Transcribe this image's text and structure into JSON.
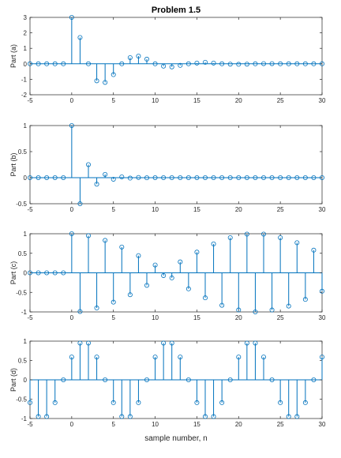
{
  "figure": {
    "title": "Problem 1.5",
    "xlabel": "sample number, n",
    "stem_color": "#0072BD",
    "axis_color": "#262626"
  },
  "chart_data": [
    {
      "type": "stem",
      "ylabel": "Part (a)",
      "xlim": [
        -5,
        30
      ],
      "ylim": [
        -2,
        3
      ],
      "xticks": [
        "-5",
        "0",
        "5",
        "10",
        "15",
        "20",
        "25",
        "30"
      ],
      "yticks": [
        "-2",
        "-1",
        "0",
        "1",
        "2",
        "3"
      ],
      "grid": false,
      "x": [
        -5,
        -4,
        -3,
        -2,
        -1,
        0,
        1,
        2,
        3,
        4,
        5,
        6,
        7,
        8,
        9,
        10,
        11,
        12,
        13,
        14,
        15,
        16,
        17,
        18,
        19,
        20,
        21,
        22,
        23,
        24,
        25,
        26,
        27,
        28,
        29,
        30
      ],
      "values": [
        0,
        0,
        0,
        0,
        0,
        3,
        1.7,
        0,
        -1.1,
        -1.2,
        -0.7,
        0,
        0.4,
        0.5,
        0.3,
        0,
        -0.15,
        -0.2,
        -0.1,
        0,
        0.05,
        0.1,
        0.05,
        0,
        -0.02,
        -0.03,
        -0.02,
        0,
        0.01,
        0.01,
        0,
        0,
        0,
        0,
        0,
        0
      ]
    },
    {
      "type": "stem",
      "ylabel": "Part (b)",
      "xlim": [
        -5,
        30
      ],
      "ylim": [
        -0.5,
        1
      ],
      "xticks": [
        "-5",
        "0",
        "5",
        "10",
        "15",
        "20",
        "25",
        "30"
      ],
      "yticks": [
        "-0.5",
        "0",
        "0.5",
        "1"
      ],
      "grid": false,
      "x": [
        -5,
        -4,
        -3,
        -2,
        -1,
        0,
        1,
        2,
        3,
        4,
        5,
        6,
        7,
        8,
        9,
        10,
        11,
        12,
        13,
        14,
        15,
        16,
        17,
        18,
        19,
        20,
        21,
        22,
        23,
        24,
        25,
        26,
        27,
        28,
        29,
        30
      ],
      "values": [
        0,
        0,
        0,
        0,
        0,
        1,
        -0.5,
        0.25,
        -0.125,
        0.0625,
        -0.03,
        0.016,
        -0.008,
        0.004,
        -0.002,
        0,
        0,
        0,
        0,
        0,
        0,
        0,
        0,
        0,
        0,
        0,
        0,
        0,
        0,
        0,
        0,
        0,
        0,
        0,
        0,
        0
      ]
    },
    {
      "type": "stem",
      "ylabel": "Part (c)",
      "xlim": [
        -5,
        30
      ],
      "ylim": [
        -1,
        1
      ],
      "xticks": [
        "-5",
        "0",
        "5",
        "10",
        "15",
        "20",
        "25",
        "30"
      ],
      "yticks": [
        "-1",
        "-0.5",
        "0",
        "0.5",
        "1"
      ],
      "grid": false,
      "x": [
        -5,
        -4,
        -3,
        -2,
        -1,
        0,
        1,
        2,
        3,
        4,
        5,
        6,
        7,
        8,
        9,
        10,
        11,
        12,
        13,
        14,
        15,
        16,
        17,
        18,
        19,
        20,
        21,
        22,
        23,
        24,
        25,
        26,
        27,
        28,
        29,
        30
      ],
      "values": [
        0,
        0,
        0,
        0,
        0,
        1,
        -0.99,
        0.95,
        -0.9,
        0.83,
        -0.75,
        0.66,
        -0.56,
        0.44,
        -0.32,
        0.2,
        -0.07,
        -0.13,
        0.28,
        -0.41,
        0.53,
        -0.64,
        0.74,
        -0.83,
        0.9,
        -0.95,
        0.99,
        -1,
        0.99,
        -0.95,
        0.9,
        -0.85,
        0.77,
        -0.68,
        0.58,
        -0.47
      ]
    },
    {
      "type": "stem",
      "ylabel": "Part (d)",
      "xlim": [
        -5,
        30
      ],
      "ylim": [
        -1,
        1
      ],
      "xticks": [
        "-5",
        "0",
        "5",
        "10",
        "15",
        "20",
        "25",
        "30"
      ],
      "yticks": [
        "-1",
        "-0.5",
        "0",
        "0.5",
        "1"
      ],
      "grid": false,
      "x": [
        -5,
        -4,
        -3,
        -2,
        -1,
        0,
        1,
        2,
        3,
        4,
        5,
        6,
        7,
        8,
        9,
        10,
        11,
        12,
        13,
        14,
        15,
        16,
        17,
        18,
        19,
        20,
        21,
        22,
        23,
        24,
        25,
        26,
        27,
        28,
        29,
        30
      ],
      "values": [
        -0.59,
        -0.95,
        -0.95,
        -0.59,
        0,
        0.59,
        0.95,
        0.95,
        0.59,
        0,
        -0.59,
        -0.95,
        -0.95,
        -0.59,
        0,
        0.59,
        0.95,
        0.95,
        0.59,
        0,
        -0.59,
        -0.95,
        -0.95,
        -0.59,
        0,
        0.59,
        0.95,
        0.95,
        0.59,
        0,
        -0.59,
        -0.95,
        -0.95,
        -0.59,
        0,
        0.59
      ]
    }
  ]
}
